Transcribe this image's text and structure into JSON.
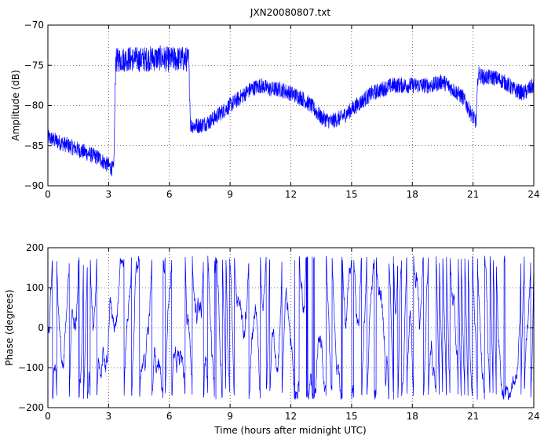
{
  "figure": {
    "title": "JXN20080807.txt"
  },
  "chart_data": [
    {
      "type": "line",
      "title": "JXN20080807.txt",
      "xlabel": "",
      "ylabel": "Amplitude (dB)",
      "xlim": [
        0,
        24
      ],
      "ylim": [
        -90,
        -70
      ],
      "xticks": [
        "0",
        "3",
        "6",
        "9",
        "12",
        "15",
        "18",
        "21",
        "24"
      ],
      "yticks": [
        "-70",
        "-75",
        "-80",
        "-85",
        "-90"
      ],
      "grid": true,
      "line_color": "#0000ff",
      "series": [
        {
          "x": [
            0,
            0.5,
            1,
            1.5,
            2,
            2.5,
            3,
            3.25,
            3.35,
            3.5,
            4,
            4.5,
            5,
            5.5,
            6,
            6.5,
            6.95,
            7.05,
            7.5,
            8,
            8.5,
            9,
            9.5,
            10,
            10.5,
            11,
            11.5,
            12,
            12.5,
            13,
            13.5,
            14,
            14.5,
            15,
            15.5,
            16,
            16.5,
            17,
            17.5,
            18,
            18.5,
            19,
            19.5,
            20,
            20.5,
            21,
            21.15,
            21.25,
            21.5,
            22,
            22.5,
            23,
            23.5,
            24
          ],
          "y": [
            -84,
            -84.5,
            -85,
            -85.5,
            -86,
            -86.5,
            -87.5,
            -88,
            -74.5,
            -74.3,
            -74.2,
            -74.3,
            -74.2,
            -74.1,
            -74.3,
            -74.2,
            -74.3,
            -82.5,
            -82.5,
            -82,
            -81,
            -80,
            -79,
            -78,
            -77.5,
            -78,
            -78,
            -78.5,
            -79,
            -80,
            -81.5,
            -82,
            -81.5,
            -80.5,
            -79.5,
            -78.5,
            -78,
            -77.5,
            -77.5,
            -77.5,
            -77.5,
            -77.5,
            -77,
            -78,
            -79,
            -81.5,
            -82,
            -76,
            -76.5,
            -76.5,
            -77,
            -78,
            -78.5,
            -77.5
          ],
          "noise": 1.0
        }
      ]
    },
    {
      "type": "line",
      "title": "",
      "xlabel": "Time (hours after midnight UTC)",
      "ylabel": "Phase (degrees)",
      "xlim": [
        0,
        24
      ],
      "ylim": [
        -200,
        200
      ],
      "xticks": [
        "0",
        "3",
        "6",
        "9",
        "12",
        "15",
        "18",
        "21",
        "24"
      ],
      "yticks": [
        "200",
        "100",
        "0",
        "-100",
        "-200"
      ],
      "grid": true,
      "line_color": "#0000ff",
      "series": [
        {
          "wraps_between": [
            -180,
            180
          ]
        }
      ]
    }
  ]
}
